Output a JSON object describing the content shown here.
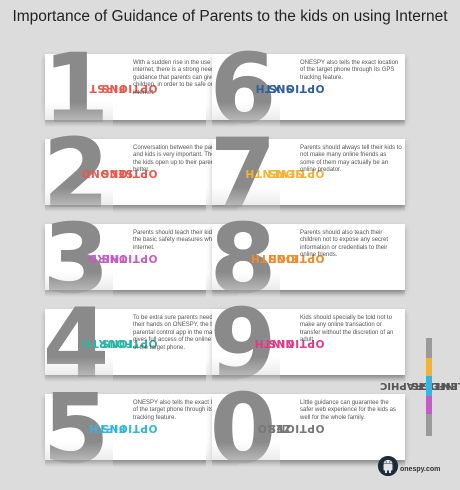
{
  "title": "Importance of Guidance of Parents to the kids on using Internet",
  "options": [
    {
      "number": "1",
      "label_line1": "FIRST",
      "label_line2": "OPTIONS",
      "color": "#e45a4e",
      "text": "With a sudden rise in the use of internet, there is a strong need for the guidance that parents can give to their children, in order to be safe on the internet."
    },
    {
      "number": "2",
      "label_line1": "SECOND",
      "label_line2": "OPTIONS",
      "color": "#e45a4e",
      "text": "Conversation between the parents and kids is very important. The more the kids open up to their parents, the better."
    },
    {
      "number": "3",
      "label_line1": "THIRD",
      "label_line2": "OPTIONS",
      "color": "#c35cc4",
      "text": "Parents should teach their kids about the basic safety measures while on internet."
    },
    {
      "number": "4",
      "label_line1": "FOURTH",
      "label_line2": "OPTIONS",
      "color": "#2bb3a6",
      "text": "To be extra sure parents need to try their hands on ONESPY, the best parental control app in the market. It gives full access of the online activity of the target phone."
    },
    {
      "number": "5",
      "label_line1": "FIFTH",
      "label_line2": "OPTIONS",
      "color": "#33b5e0",
      "text": "ONESPY also tells the exact location of the target phone through its GPS tracking feature."
    },
    {
      "number": "6",
      "label_line1": "SIXTH",
      "label_line2": "OPTIONS",
      "color": "#2e5f9e",
      "text": "ONESPY also tells the exact location of the target phone through its GPS tracking feature."
    },
    {
      "number": "7",
      "label_line1": "SEVENTH",
      "label_line2": "OPTIONS",
      "color": "#f2b233",
      "text": "Parents should always tell their kids to not make many online friends as some of them may actually be an online predator."
    },
    {
      "number": "8",
      "label_line1": "EIGHTH",
      "label_line2": "OPTIONS",
      "color": "#f08a2a",
      "text": "Parents should also teach their children not to expose any secret information or credentials to their online friends."
    },
    {
      "number": "9",
      "label_line1": "NINTH",
      "label_line2": "OPTIONS",
      "color": "#e0398a",
      "text": "Kids should specially be told not to make any online transaction or transfer without the discretion of an adult."
    },
    {
      "number": "0",
      "label_line1": "ZERO",
      "label_line2": "OPTIONS",
      "color": "#777777",
      "text": "Little guidance can guarantee the safer web experience for the kids as well for the whole family."
    }
  ],
  "side_label": {
    "line1": "INFOGRAPHIC",
    "line2": "ELEMENTS"
  },
  "side_bar_colors": [
    "#9a9a9a",
    "#f2b233",
    "#33b5e0",
    "#c35cc4",
    "#9a9a9a"
  ],
  "logo": {
    "text": "onespy.com",
    "icon": "android-robot-icon"
  }
}
